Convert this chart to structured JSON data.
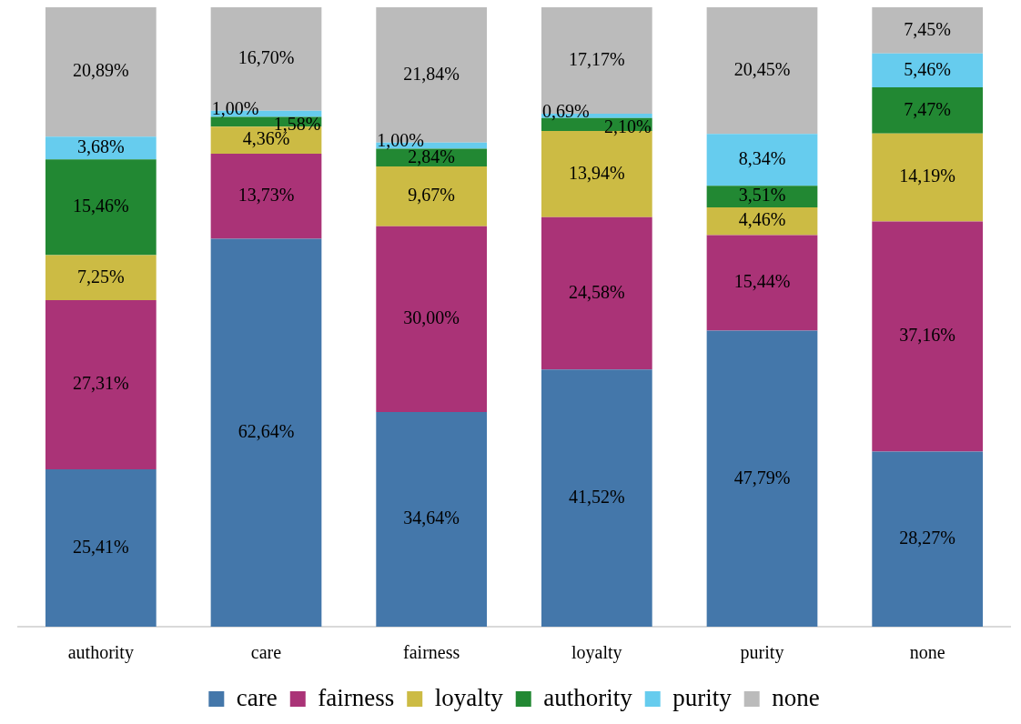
{
  "chart_data": {
    "type": "bar",
    "stacked": true,
    "legend": "bottom",
    "tick_labels": "x",
    "ylim": [
      0,
      100
    ],
    "categories": [
      "authority",
      "care",
      "fairness",
      "loyalty",
      "purity",
      "none"
    ],
    "series": [
      {
        "name": "care",
        "color": "#4477aa",
        "values": [
          25.41,
          62.64,
          34.64,
          41.52,
          47.79,
          28.27
        ],
        "value_labels": [
          "25,41%",
          "62,64%",
          "34,64%",
          "41,52%",
          "47,79%",
          "28,27%"
        ]
      },
      {
        "name": "fairness",
        "color": "#aa3377",
        "values": [
          27.31,
          13.73,
          30.0,
          24.58,
          15.44,
          37.16
        ],
        "value_labels": [
          "27,31%",
          "13,73%",
          "30,00%",
          "24,58%",
          "15,44%",
          "37,16%"
        ]
      },
      {
        "name": "loyalty",
        "color": "#ccbb44",
        "values": [
          7.25,
          4.36,
          9.67,
          13.94,
          4.46,
          14.19
        ],
        "value_labels": [
          "7,25%",
          "4,36%",
          "9,67%",
          "13,94%",
          "4,46%",
          "14,19%"
        ]
      },
      {
        "name": "authority",
        "color": "#228833",
        "values": [
          15.46,
          1.58,
          2.84,
          2.1,
          3.51,
          7.47
        ],
        "value_labels": [
          "15,46%",
          "1,58%",
          "2,84%",
          "2,10%",
          "3,51%",
          "7,47%"
        ]
      },
      {
        "name": "purity",
        "color": "#66ccee",
        "values": [
          3.68,
          1.0,
          1.0,
          0.69,
          8.34,
          5.46
        ],
        "value_labels": [
          "3,68%",
          "1,00%",
          "1,00%",
          "0,69%",
          "8,34%",
          "5,46%"
        ]
      },
      {
        "name": "none",
        "color": "#bbbbbb",
        "values": [
          20.89,
          16.7,
          21.84,
          17.17,
          20.45,
          7.45
        ],
        "value_labels": [
          "20,89%",
          "16,70%",
          "21,84%",
          "17,17%",
          "20,45%",
          "7,45%"
        ]
      }
    ]
  }
}
